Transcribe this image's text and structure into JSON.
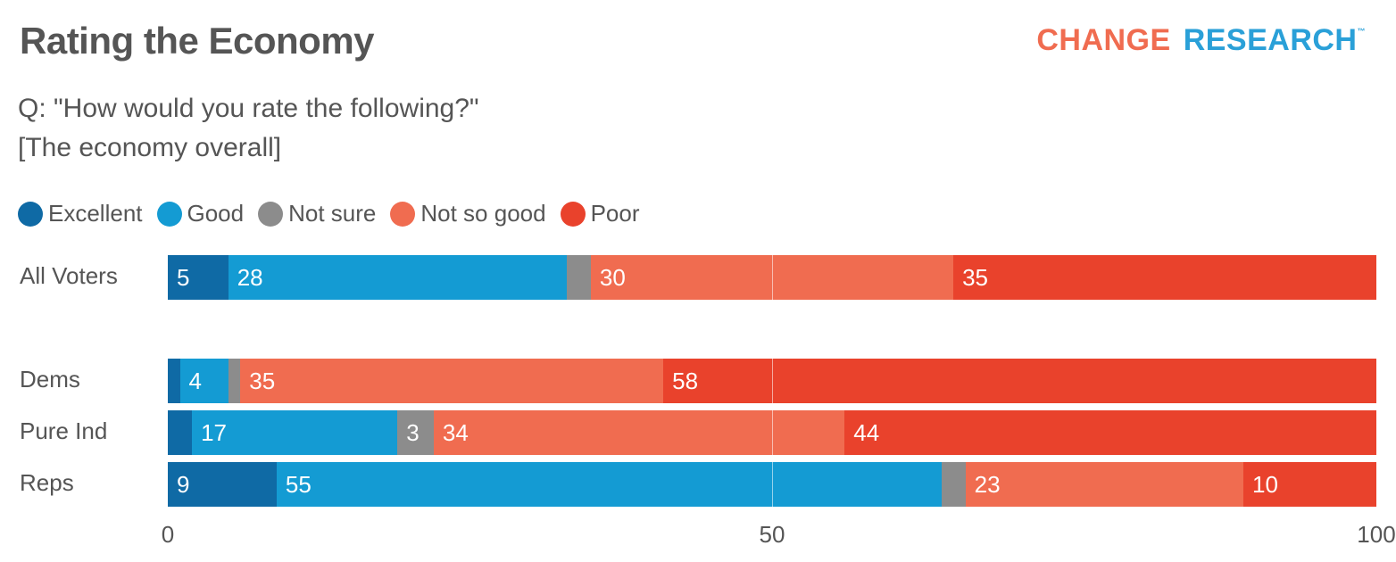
{
  "header": {
    "title": "Rating the Economy",
    "subtitle_line1": "Q: \"How would you rate the following?\"",
    "subtitle_line2": "[The economy overall]",
    "logo_text_1": "CHANGE",
    "logo_text_2": "RESEARCH",
    "logo_tm": "™"
  },
  "chart_data": {
    "type": "bar",
    "orientation": "horizontal",
    "stacked": true,
    "categories": [
      "All Voters",
      "Dems",
      "Pure Ind",
      "Reps"
    ],
    "series": [
      {
        "name": "Excellent",
        "color": "#0f6aa5",
        "values": [
          5,
          1,
          2,
          9
        ]
      },
      {
        "name": "Good",
        "color": "#149bd3",
        "values": [
          28,
          4,
          17,
          55
        ]
      },
      {
        "name": "Not sure",
        "color": "#8c8c8c",
        "values": [
          2,
          1,
          3,
          2
        ]
      },
      {
        "name": "Not so good",
        "color": "#f06c50",
        "values": [
          30,
          35,
          34,
          23
        ]
      },
      {
        "name": "Poor",
        "color": "#e9422c",
        "values": [
          35,
          58,
          44,
          10
        ]
      }
    ],
    "xlim": [
      0,
      100
    ],
    "xticks": [
      "0",
      "50",
      "100"
    ],
    "legend": "top-left",
    "grid": "vertical line at 50"
  }
}
